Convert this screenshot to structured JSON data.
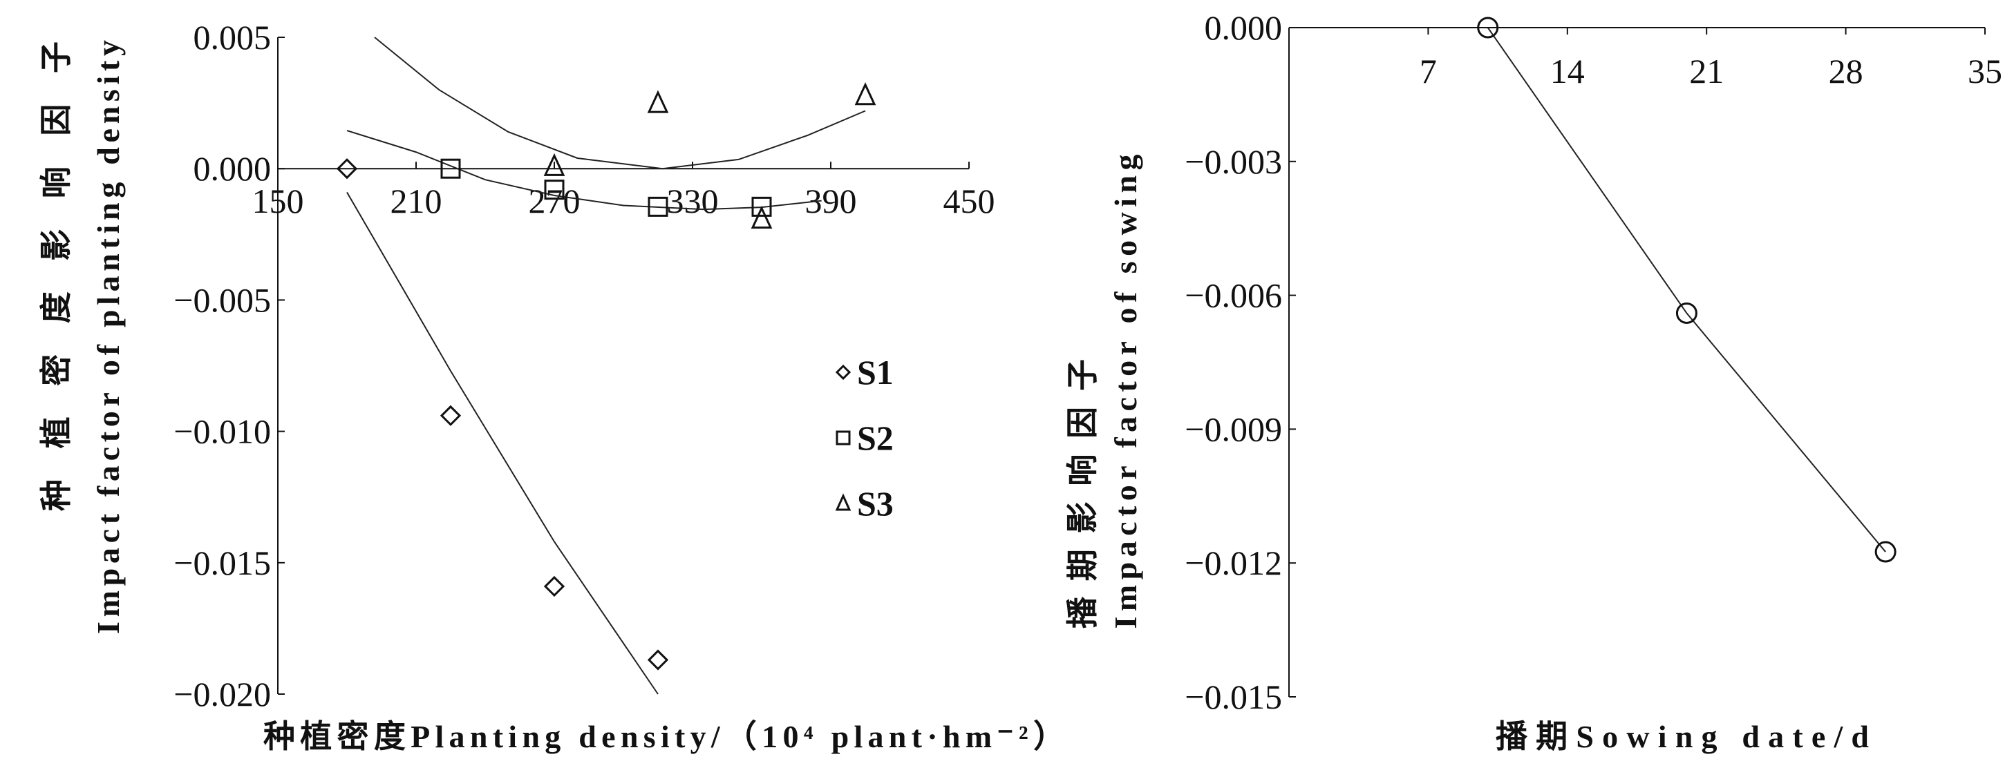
{
  "chart_data": [
    {
      "type": "scatter",
      "xlabel": "种植密度Planting density/（10⁴ plant·hm⁻²）",
      "ylabel_cn": "种植密度影响因子",
      "ylabel_en": "Impact factor of planting density",
      "xlim": [
        150,
        450
      ],
      "ylim": [
        -0.02,
        0.005
      ],
      "xticks": [
        "150",
        "210",
        "270",
        "330",
        "390",
        "450"
      ],
      "yticks": [
        "0.005",
        "0.000",
        "−0.005",
        "−0.010",
        "−0.015",
        "−0.020"
      ],
      "xtick_values": [
        150,
        210,
        270,
        330,
        390,
        450
      ],
      "ytick_values": [
        0.005,
        0.0,
        -0.005,
        -0.01,
        -0.015,
        -0.02
      ],
      "legend_position": "right",
      "series": [
        {
          "name": "S1",
          "marker": "diamond",
          "x": [
            180,
            225,
            270,
            315
          ],
          "y": [
            0.0,
            -0.0094,
            -0.0159,
            -0.0187
          ],
          "fit_x": [
            180,
            225,
            270,
            315
          ],
          "fit_y": [
            -0.0009,
            -0.0077,
            -0.0142,
            -0.02
          ]
        },
        {
          "name": "S2",
          "marker": "square",
          "x": [
            225,
            270,
            315,
            360
          ],
          "y": [
            0.0,
            -0.0008,
            -0.00145,
            -0.00145
          ],
          "fit_x": [
            180,
            210,
            240,
            270,
            300,
            335,
            360,
            386
          ],
          "fit_y": [
            0.00145,
            0.00063,
            -0.00042,
            -0.00102,
            -0.0014,
            -0.00155,
            -0.00147,
            -0.00122
          ]
        },
        {
          "name": "S3",
          "marker": "triangle",
          "x": [
            270,
            315,
            360,
            405
          ],
          "y": [
            0.0001,
            0.0025,
            -0.0019,
            0.0028
          ],
          "fit_x": [
            192,
            220,
            250,
            280,
            317,
            350,
            380,
            405
          ],
          "fit_y": [
            0.005,
            0.003,
            0.0014,
            0.0004,
            0.0,
            0.00035,
            0.00127,
            0.0022
          ]
        }
      ]
    },
    {
      "type": "line",
      "xlabel": "播期Sowing date/d",
      "ylabel_cn": "播期影响因子",
      "ylabel_en": "Impactor factor of sowing",
      "xlim": [
        0,
        35
      ],
      "ylim": [
        -0.015,
        0.0
      ],
      "xticks": [
        "7",
        "14",
        "21",
        "28",
        "35"
      ],
      "yticks": [
        "0.000",
        "−0.003",
        "−0.006",
        "−0.009",
        "−0.012",
        "−0.015"
      ],
      "xtick_values": [
        7,
        14,
        21,
        28,
        35
      ],
      "ytick_values": [
        0.0,
        -0.003,
        -0.006,
        -0.009,
        -0.012,
        -0.015
      ],
      "series": [
        {
          "name": "Sowing",
          "marker": "circle",
          "x": [
            10,
            20,
            30
          ],
          "y": [
            0.0,
            -0.0064,
            -0.01175
          ]
        }
      ]
    }
  ]
}
